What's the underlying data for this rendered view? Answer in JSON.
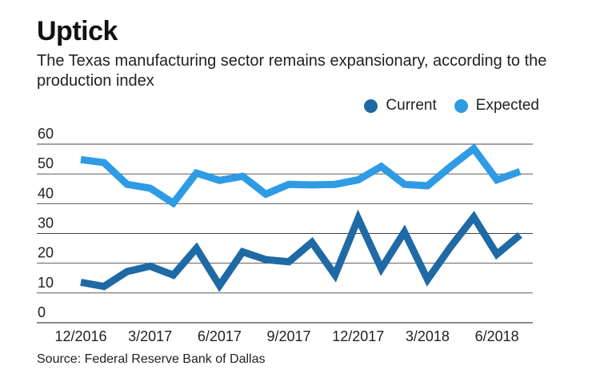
{
  "header": {
    "title": "Uptick",
    "subtitle": "The Texas manufacturing sector remains expansionary, according to the production index"
  },
  "footer": {
    "source": "Source: Federal Reserve Bank of Dallas"
  },
  "colors": {
    "current": "#1f6aa5",
    "expected": "#2e9be5",
    "grid": "#444444"
  },
  "chart_data": {
    "type": "line",
    "title": "Uptick",
    "subtitle": "The Texas manufacturing sector remains expansionary, according to the production index",
    "xlabel": "",
    "ylabel": "",
    "x": [
      "12/2016",
      "1/2017",
      "2/2017",
      "3/2017",
      "4/2017",
      "5/2017",
      "6/2017",
      "7/2017",
      "8/2017",
      "9/2017",
      "10/2017",
      "11/2017",
      "12/2017",
      "1/2018",
      "2/2018",
      "3/2018",
      "4/2018",
      "5/2018",
      "6/2018",
      "7/2018"
    ],
    "x_tick_labels": [
      "12/2016",
      "3/2017",
      "6/2017",
      "9/2017",
      "12/2017",
      "3/2018",
      "6/2018"
    ],
    "y_ticks": [
      0,
      10,
      20,
      30,
      40,
      50,
      60
    ],
    "ylim": [
      0,
      60
    ],
    "grid": true,
    "legend_position": "top-right",
    "series": [
      {
        "name": "Current",
        "color": "#1f6aa5",
        "values": [
          13.6,
          12.2,
          17.2,
          19.0,
          16.0,
          25.0,
          12.5,
          23.8,
          21.2,
          20.5,
          27.0,
          16.0,
          35.0,
          18.2,
          30.5,
          14.5,
          25.5,
          35.5,
          23.0,
          29.5
        ]
      },
      {
        "name": "Expected",
        "color": "#2e9be5",
        "values": [
          54.8,
          53.8,
          46.5,
          45.2,
          40.2,
          50.3,
          47.8,
          49.2,
          43.2,
          46.5,
          46.3,
          46.5,
          48.0,
          52.5,
          46.5,
          46.0,
          52.5,
          58.5,
          48.0,
          50.8
        ]
      }
    ]
  }
}
